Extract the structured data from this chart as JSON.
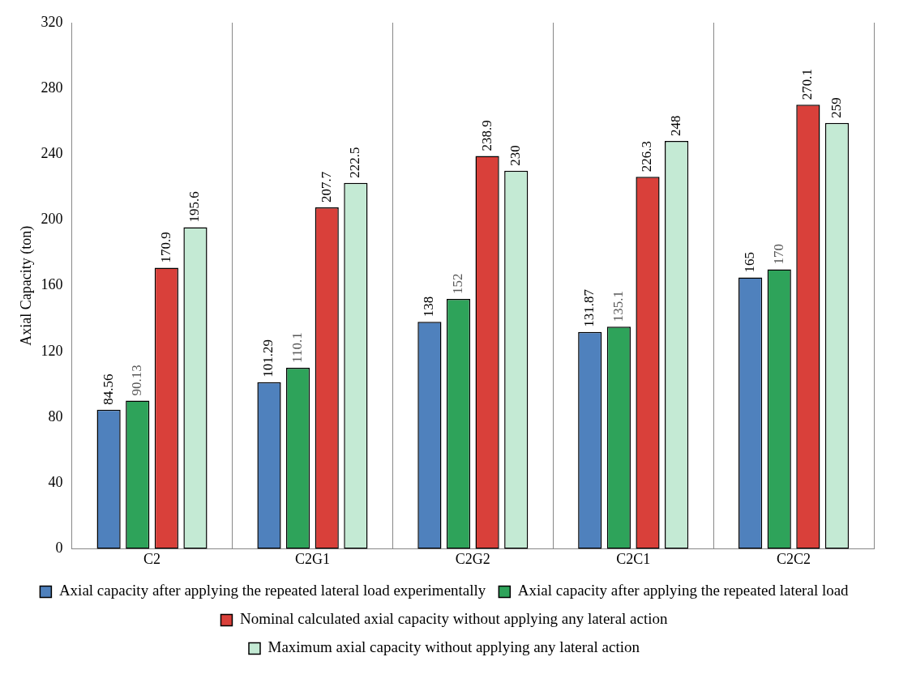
{
  "chart_data": {
    "type": "bar",
    "ylabel": "Axial Capacity (ton)",
    "categories": [
      "C2",
      "C2G1",
      "C2G2",
      "C2C1",
      "C2C2"
    ],
    "series": [
      {
        "name": "Axial capacity after applying the repeated lateral load experimentally",
        "color": "#4f81bd",
        "values": [
          84.56,
          101.29,
          138,
          131.87,
          165
        ]
      },
      {
        "name": "Axial capacity after applying the repeated lateral load",
        "color": "#2ea35a",
        "values": [
          90.13,
          110.1,
          152,
          135.1,
          170
        ]
      },
      {
        "name": "Nominal calculated axial capacity without applying any lateral action",
        "color": "#d9403a",
        "values": [
          170.9,
          207.7,
          238.9,
          226.3,
          270.1
        ]
      },
      {
        "name": "Maximum axial capacity without applying any lateral action",
        "color": "#c4ead4",
        "values": [
          195.6,
          222.5,
          230,
          248,
          259
        ]
      }
    ],
    "ylim": [
      0,
      320
    ],
    "yticks": [
      0,
      40,
      80,
      120,
      160,
      200,
      240,
      280,
      320
    ],
    "grid": "x",
    "legend": "bottom",
    "data_labels": true
  }
}
